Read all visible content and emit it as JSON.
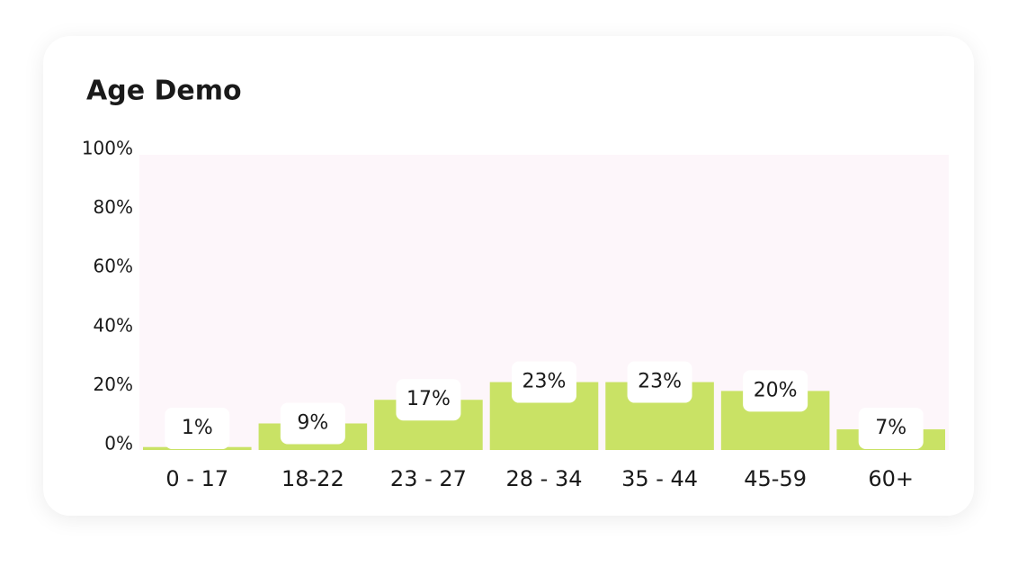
{
  "chart_data": {
    "type": "bar",
    "title": "Age Demo",
    "categories": [
      "0 - 17",
      "18-22",
      "23 - 27",
      "28 - 34",
      "35 - 44",
      "45-59",
      "60+"
    ],
    "values": [
      1,
      9,
      17,
      23,
      23,
      20,
      7
    ],
    "value_labels": [
      "1%",
      "9%",
      "17%",
      "23%",
      "23%",
      "20%",
      "7%"
    ],
    "color": "#c9e265",
    "ylim": [
      0,
      100
    ],
    "yticks": [
      {
        "value": 0,
        "label": "0%"
      },
      {
        "value": 20,
        "label": "20%"
      },
      {
        "value": 40,
        "label": "40%"
      },
      {
        "value": 60,
        "label": "60%"
      },
      {
        "value": 80,
        "label": "80%"
      },
      {
        "value": 100,
        "label": "100%"
      }
    ]
  }
}
